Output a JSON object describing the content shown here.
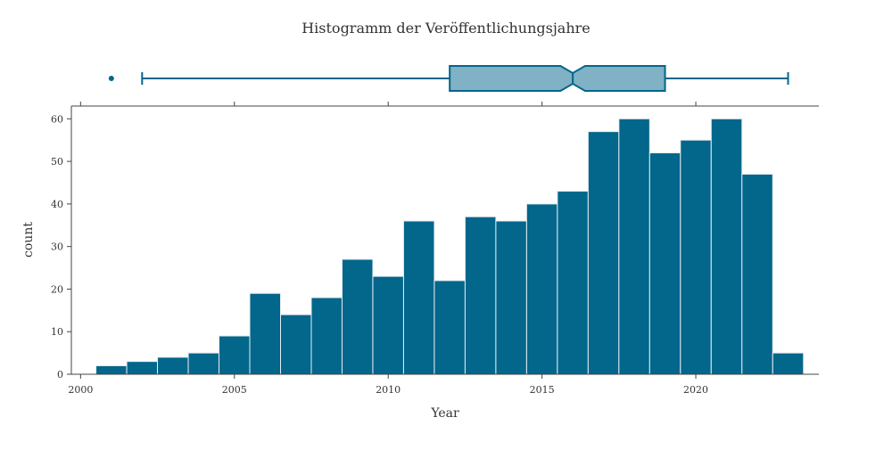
{
  "colors": {
    "bar_fill": "#03668b",
    "bar_edge": "#e6eef2",
    "box_fill": "#81b1c5",
    "box_line": "#03668b",
    "axis": "#444444"
  },
  "chart_data": {
    "type": "bar",
    "title": "Histogramm der Veröffentlichungsjahre",
    "xlabel": "Year",
    "ylabel": "count",
    "xlim": [
      1999.7,
      2024.0
    ],
    "ylim": [
      0,
      63
    ],
    "x_ticks": [
      2000,
      2005,
      2010,
      2015,
      2020
    ],
    "y_ticks": [
      0,
      10,
      20,
      30,
      40,
      50,
      60
    ],
    "bin_width": 1,
    "bin_starts": [
      2000.5,
      2001.5,
      2002.5,
      2003.5,
      2004.5,
      2005.5,
      2006.5,
      2007.5,
      2008.5,
      2009.5,
      2010.5,
      2011.5,
      2012.5,
      2013.5,
      2014.5,
      2015.5,
      2016.5,
      2017.5,
      2018.5,
      2019.5,
      2020.5,
      2021.5,
      2022.5
    ],
    "values": [
      2,
      3,
      4,
      5,
      9,
      19,
      14,
      18,
      27,
      23,
      36,
      22,
      37,
      36,
      40,
      43,
      57,
      60,
      52,
      55,
      60,
      47,
      5
    ],
    "grid": false,
    "marginal_box": {
      "lower_whisker": 2002,
      "q1": 2012,
      "median": 2016,
      "q3": 2019,
      "upper_whisker": 2023,
      "notch_low": 2015.6,
      "notch_high": 2016.4,
      "outliers": [
        2001
      ]
    }
  }
}
